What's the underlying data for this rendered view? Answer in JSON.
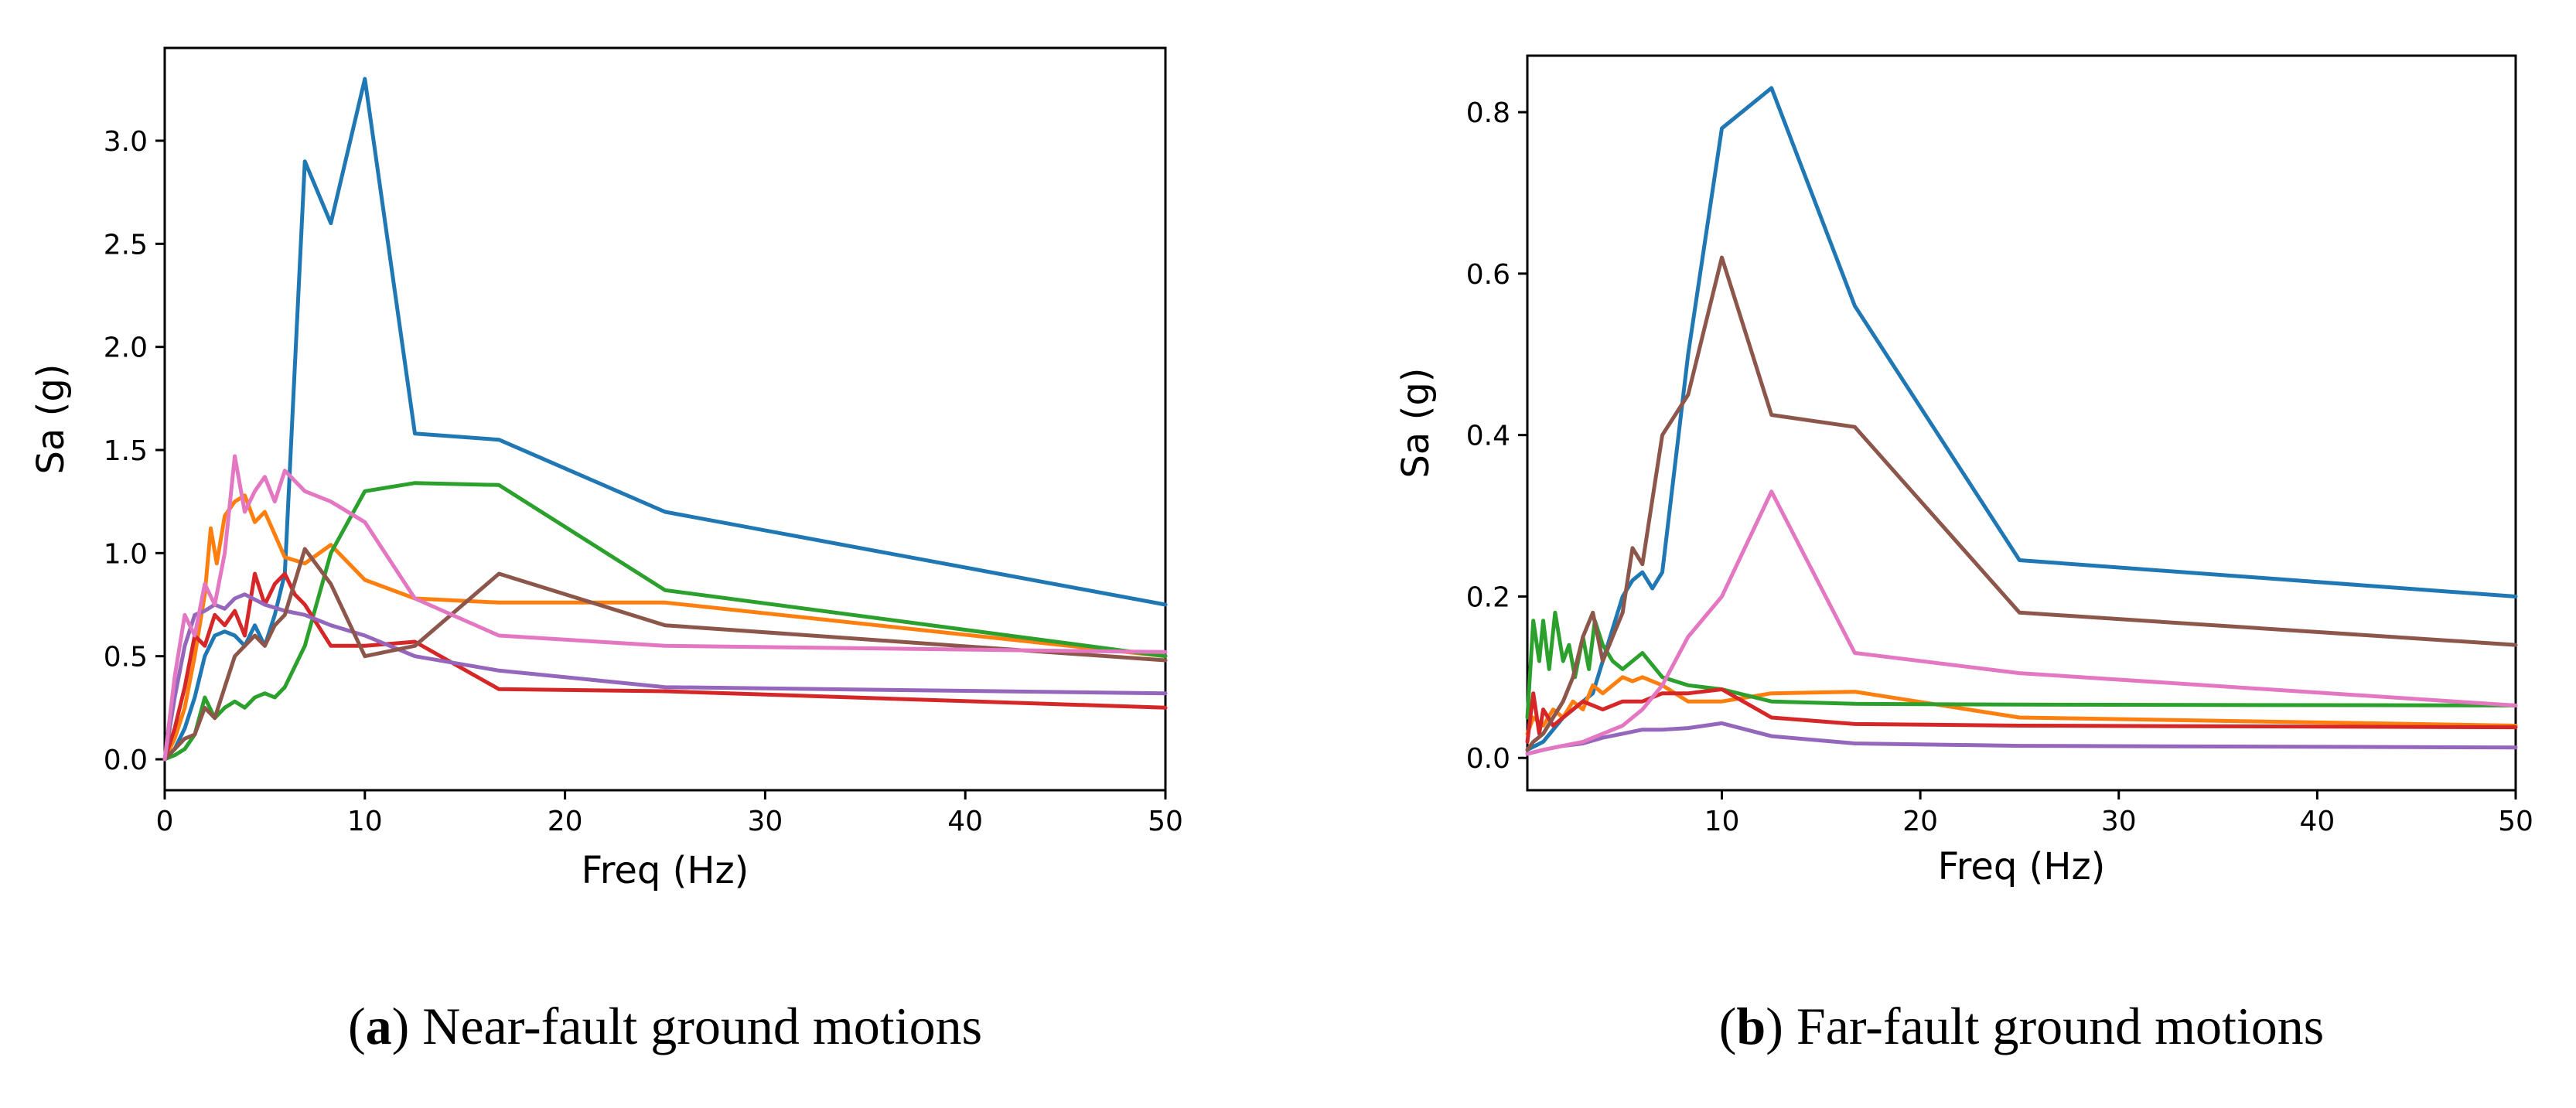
{
  "chart_data": [
    {
      "type": "line",
      "panel_label": "a",
      "caption": "Near-fault ground motions",
      "xlabel": "Freq (Hz)",
      "ylabel": "Sa (g)",
      "xlim": [
        0,
        50
      ],
      "ylim": [
        -0.15,
        3.45
      ],
      "xticks": [
        0,
        10,
        20,
        30,
        40,
        50
      ],
      "yticks": [
        0.0,
        0.5,
        1.0,
        1.5,
        2.0,
        2.5,
        3.0
      ],
      "xtick_labels": [
        "0",
        "10",
        "20",
        "30",
        "40",
        "50"
      ],
      "ytick_labels": [
        "0.0",
        "0.5",
        "1.0",
        "1.5",
        "2.0",
        "2.5",
        "3.0"
      ],
      "legend": false,
      "grid": false,
      "series": [
        {
          "name": "blue",
          "color": "#1f77b4",
          "x": [
            0,
            0.5,
            1,
            1.5,
            2,
            2.5,
            3,
            3.5,
            4,
            4.5,
            5,
            5.5,
            6,
            6.5,
            7,
            8.3,
            10,
            12.5,
            16.7,
            25,
            50
          ],
          "y": [
            0,
            0.05,
            0.15,
            0.3,
            0.5,
            0.6,
            0.62,
            0.6,
            0.55,
            0.65,
            0.55,
            0.7,
            0.9,
            1.9,
            2.9,
            2.6,
            3.3,
            1.58,
            1.55,
            1.2,
            0.75
          ]
        },
        {
          "name": "orange",
          "color": "#ff7f0e",
          "x": [
            0,
            0.5,
            1,
            1.5,
            2,
            2.3,
            2.6,
            3,
            3.5,
            4,
            4.5,
            5,
            6,
            7,
            8.3,
            10,
            12.5,
            16.7,
            25,
            50
          ],
          "y": [
            0,
            0.1,
            0.25,
            0.5,
            0.8,
            1.12,
            0.95,
            1.18,
            1.25,
            1.28,
            1.15,
            1.2,
            0.98,
            0.95,
            1.04,
            0.87,
            0.78,
            0.76,
            0.76,
            0.5
          ]
        },
        {
          "name": "green",
          "color": "#2ca02c",
          "x": [
            0,
            0.5,
            1,
            1.5,
            2,
            2.5,
            3,
            3.5,
            4,
            4.5,
            5,
            5.5,
            6,
            7,
            8.3,
            10,
            12.5,
            16.7,
            25,
            50
          ],
          "y": [
            0,
            0.02,
            0.05,
            0.12,
            0.3,
            0.2,
            0.25,
            0.28,
            0.25,
            0.3,
            0.32,
            0.3,
            0.35,
            0.55,
            1.0,
            1.3,
            1.34,
            1.33,
            0.82,
            0.5
          ]
        },
        {
          "name": "red",
          "color": "#d62728",
          "x": [
            0,
            0.5,
            1,
            1.5,
            2,
            2.5,
            3,
            3.5,
            4,
            4.5,
            5,
            5.5,
            6,
            6.5,
            7,
            8.3,
            10,
            12.5,
            16.7,
            25,
            50
          ],
          "y": [
            0,
            0.15,
            0.35,
            0.6,
            0.55,
            0.7,
            0.65,
            0.72,
            0.6,
            0.9,
            0.75,
            0.85,
            0.9,
            0.8,
            0.75,
            0.55,
            0.55,
            0.57,
            0.34,
            0.33,
            0.25
          ]
        },
        {
          "name": "purple",
          "color": "#9467bd",
          "x": [
            0,
            0.5,
            1,
            1.5,
            2,
            2.5,
            3,
            3.5,
            4,
            5,
            6,
            7,
            8.3,
            10,
            12.5,
            16.7,
            25,
            50
          ],
          "y": [
            0,
            0.3,
            0.55,
            0.7,
            0.72,
            0.75,
            0.73,
            0.78,
            0.8,
            0.75,
            0.72,
            0.7,
            0.65,
            0.6,
            0.5,
            0.43,
            0.35,
            0.32
          ]
        },
        {
          "name": "brown",
          "color": "#8c564b",
          "x": [
            0,
            0.5,
            1,
            1.5,
            2,
            2.5,
            3,
            3.5,
            4,
            4.5,
            5,
            5.5,
            6,
            7,
            8.3,
            10,
            12.5,
            16.7,
            25,
            50
          ],
          "y": [
            0,
            0.05,
            0.1,
            0.12,
            0.25,
            0.2,
            0.35,
            0.5,
            0.55,
            0.6,
            0.55,
            0.65,
            0.7,
            1.02,
            0.85,
            0.5,
            0.55,
            0.9,
            0.65,
            0.48
          ]
        },
        {
          "name": "pink",
          "color": "#e377c2",
          "x": [
            0,
            0.5,
            1,
            1.5,
            2,
            2.5,
            3,
            3.5,
            4,
            4.5,
            5,
            5.5,
            6,
            7,
            8.3,
            10,
            12.5,
            16.7,
            25,
            50
          ],
          "y": [
            0,
            0.4,
            0.7,
            0.6,
            0.85,
            0.75,
            1.0,
            1.47,
            1.2,
            1.3,
            1.37,
            1.25,
            1.4,
            1.3,
            1.25,
            1.15,
            0.78,
            0.6,
            0.55,
            0.52
          ]
        }
      ]
    },
    {
      "type": "line",
      "panel_label": "b",
      "caption": "Far-fault ground motions",
      "xlabel": "Freq (Hz)",
      "ylabel": "Sa (g)",
      "xlim": [
        0.2,
        50
      ],
      "ylim": [
        -0.04,
        0.87
      ],
      "xticks": [
        10,
        20,
        30,
        40,
        50
      ],
      "yticks": [
        0.0,
        0.2,
        0.4,
        0.6,
        0.8
      ],
      "xtick_labels": [
        "10",
        "20",
        "30",
        "40",
        "50"
      ],
      "ytick_labels": [
        "0.0",
        "0.2",
        "0.4",
        "0.6",
        "0.8"
      ],
      "legend": false,
      "grid": false,
      "series": [
        {
          "name": "blue",
          "color": "#1f77b4",
          "x": [
            0.2,
            1,
            2,
            3,
            3.5,
            4,
            4.5,
            5,
            5.5,
            6,
            6.5,
            7,
            8.3,
            10,
            12.5,
            16.7,
            25,
            50
          ],
          "y": [
            0.01,
            0.02,
            0.05,
            0.07,
            0.08,
            0.12,
            0.16,
            0.2,
            0.22,
            0.23,
            0.21,
            0.23,
            0.5,
            0.78,
            0.83,
            0.56,
            0.245,
            0.2
          ]
        },
        {
          "name": "orange",
          "color": "#ff7f0e",
          "x": [
            0.2,
            0.5,
            1,
            1.5,
            2,
            2.5,
            3,
            3.5,
            4,
            4.5,
            5,
            5.5,
            6,
            7,
            8.3,
            10,
            12.5,
            16.7,
            25,
            50
          ],
          "y": [
            0.03,
            0.05,
            0.04,
            0.06,
            0.05,
            0.07,
            0.06,
            0.09,
            0.08,
            0.09,
            0.1,
            0.095,
            0.1,
            0.09,
            0.07,
            0.07,
            0.08,
            0.082,
            0.05,
            0.04
          ]
        },
        {
          "name": "green",
          "color": "#2ca02c",
          "x": [
            0.2,
            0.5,
            0.8,
            1,
            1.3,
            1.6,
            2,
            2.3,
            2.6,
            3,
            3.3,
            3.6,
            4,
            4.5,
            5,
            6,
            7,
            8.3,
            10,
            12.5,
            16.7,
            25,
            50
          ],
          "y": [
            0.05,
            0.17,
            0.12,
            0.17,
            0.11,
            0.18,
            0.12,
            0.14,
            0.1,
            0.15,
            0.11,
            0.17,
            0.14,
            0.12,
            0.11,
            0.13,
            0.1,
            0.09,
            0.085,
            0.07,
            0.067,
            0.066,
            0.065
          ]
        },
        {
          "name": "red",
          "color": "#d62728",
          "x": [
            0.2,
            0.5,
            0.8,
            1,
            1.5,
            2,
            2.5,
            3,
            4,
            5,
            6,
            7,
            8.3,
            10,
            12.5,
            16.7,
            25,
            50
          ],
          "y": [
            0.02,
            0.08,
            0.03,
            0.06,
            0.04,
            0.05,
            0.06,
            0.07,
            0.06,
            0.07,
            0.07,
            0.08,
            0.08,
            0.085,
            0.05,
            0.042,
            0.04,
            0.038
          ]
        },
        {
          "name": "purple",
          "color": "#9467bd",
          "x": [
            0.2,
            1,
            2,
            3,
            4,
            5,
            6,
            7,
            8.3,
            10,
            12.5,
            16.7,
            25,
            50
          ],
          "y": [
            0.005,
            0.01,
            0.015,
            0.018,
            0.025,
            0.03,
            0.035,
            0.035,
            0.037,
            0.043,
            0.027,
            0.018,
            0.015,
            0.013
          ]
        },
        {
          "name": "brown",
          "color": "#8c564b",
          "x": [
            0.2,
            0.5,
            1,
            1.5,
            2,
            2.5,
            3,
            3.5,
            4,
            4.5,
            5,
            5.5,
            6,
            7,
            8.3,
            10,
            12.5,
            16.7,
            25,
            50
          ],
          "y": [
            0.01,
            0.02,
            0.03,
            0.05,
            0.07,
            0.1,
            0.15,
            0.18,
            0.12,
            0.15,
            0.18,
            0.26,
            0.24,
            0.4,
            0.45,
            0.62,
            0.425,
            0.41,
            0.18,
            0.14
          ]
        },
        {
          "name": "pink",
          "color": "#e377c2",
          "x": [
            0.2,
            1,
            2,
            3,
            4,
            5,
            6,
            7,
            8.3,
            10,
            12.5,
            16.7,
            25,
            50
          ],
          "y": [
            0.005,
            0.01,
            0.015,
            0.02,
            0.03,
            0.04,
            0.06,
            0.09,
            0.15,
            0.2,
            0.33,
            0.13,
            0.105,
            0.065
          ]
        }
      ]
    }
  ]
}
